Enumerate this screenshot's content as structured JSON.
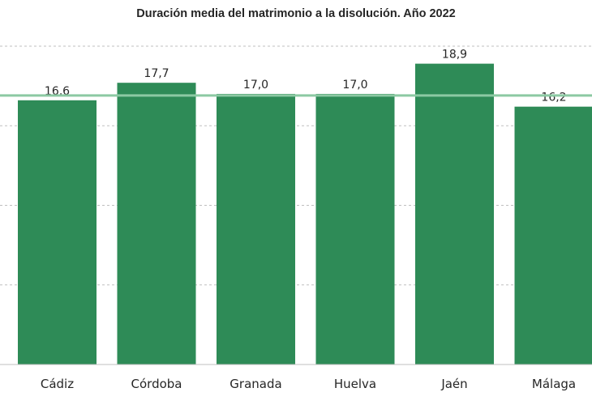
{
  "chart_data": {
    "type": "bar",
    "title": "Duración media del matrimonio a la disolución. Año 2022",
    "categories": [
      "Cádiz",
      "Córdoba",
      "Granada",
      "Huelva",
      "Jaén",
      "Málaga"
    ],
    "values": [
      16.6,
      17.7,
      17.0,
      17.0,
      18.9,
      16.2
    ],
    "value_labels": [
      "16,6",
      "17,7",
      "17,0",
      "17,0",
      "18,9",
      "16,2"
    ],
    "ylim": [
      0,
      20
    ],
    "grid": true,
    "bar_color": "#2e8b57",
    "reference_line": {
      "value": 16.9,
      "color": "#8cc9a3"
    },
    "legend": "none"
  }
}
